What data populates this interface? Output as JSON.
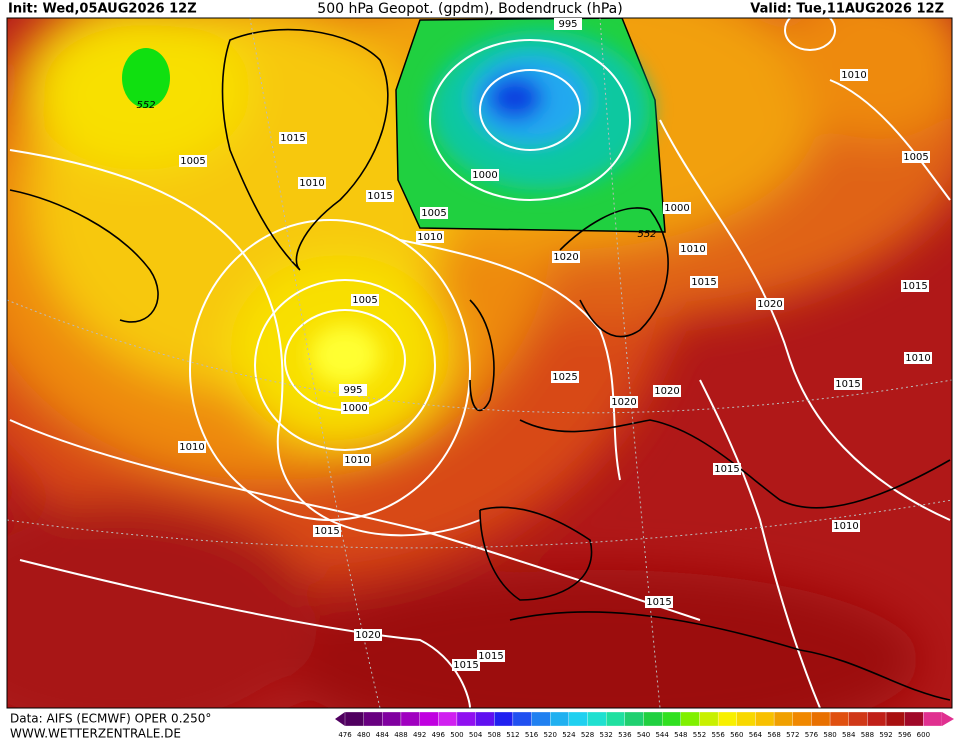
{
  "header": {
    "init": "Init: Wed,05AUG2026 12Z",
    "title": "500 hPa Geopot. (gpdm), Bodendruck (hPa)",
    "valid": "Valid: Tue,11AUG2026 12Z"
  },
  "map": {
    "pressure_labels": [
      995,
      1010,
      1015,
      1005,
      1005,
      1010,
      1015,
      1000,
      1005,
      1000,
      1010,
      1010,
      1020,
      1015,
      1015,
      1005,
      1020,
      1010,
      1025,
      1015,
      995,
      1020,
      1020,
      1000,
      1010,
      1010,
      1015,
      1015,
      1010,
      1015,
      1020,
      1015,
      1015
    ],
    "geopotential_labels": [
      552,
      552
    ]
  },
  "colorbar": {
    "labels": [
      476,
      480,
      484,
      488,
      492,
      496,
      500,
      504,
      508,
      512,
      516,
      520,
      524,
      528,
      532,
      536,
      540,
      544,
      548,
      552,
      556,
      560,
      564,
      568,
      572,
      576,
      580,
      584,
      588,
      592,
      596,
      600
    ]
  },
  "footer": {
    "source": "Data: AIFS (ECMWF) OPER 0.250°",
    "site": "WWW.WETTERZENTRALE.DE"
  }
}
